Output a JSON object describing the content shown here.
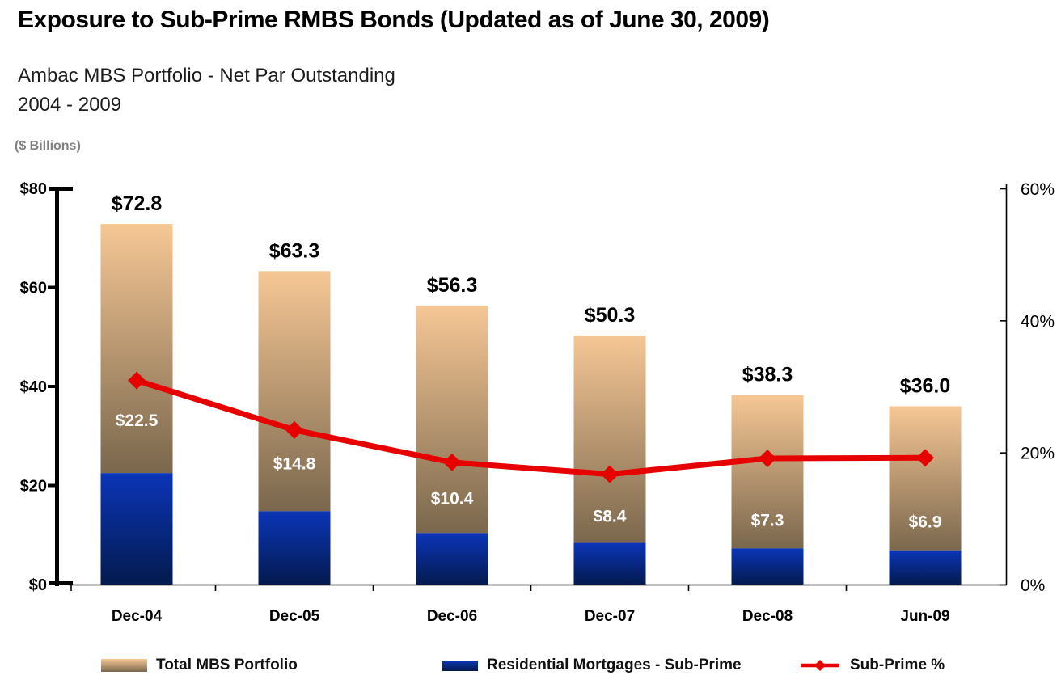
{
  "header": {
    "title": "Exposure to Sub-Prime RMBS Bonds (Updated as of June 30, 2009)",
    "subtitle_line1": "Ambac MBS Portfolio - Net Par Outstanding",
    "subtitle_line2": "2004 - 2009",
    "units_note": "($ Billions)"
  },
  "chart_data": {
    "type": "combo: stacked bar + line (secondary axis)",
    "categories": [
      "Dec-04",
      "Dec-05",
      "Dec-06",
      "Dec-07",
      "Dec-08",
      "Jun-09"
    ],
    "series": [
      {
        "name": "Total MBS Portfolio",
        "kind": "bar-total",
        "values": [
          72.8,
          63.3,
          56.3,
          50.3,
          38.3,
          36.0
        ],
        "data_labels": [
          "$72.8",
          "$63.3",
          "$56.3",
          "$50.3",
          "$38.3",
          "$36.0"
        ]
      },
      {
        "name": "Residential Mortgages - Sub-Prime",
        "kind": "bar-stacked-bottom",
        "values": [
          22.5,
          14.8,
          10.4,
          8.4,
          7.3,
          6.9
        ],
        "data_labels": [
          "$22.5",
          "$14.8",
          "$10.4",
          "$8.4",
          "$7.3",
          "$6.9"
        ]
      },
      {
        "name": "Sub-Prime %",
        "kind": "line",
        "axis": "right",
        "values": [
          30.9,
          23.4,
          18.5,
          16.7,
          19.1,
          19.2
        ]
      }
    ],
    "left_axis": {
      "min": 0,
      "max": 80,
      "ticks": [
        "$0",
        "$20",
        "$40",
        "$60",
        "$80"
      ],
      "tick_values": [
        0,
        20,
        40,
        60,
        80
      ]
    },
    "right_axis": {
      "min": 0,
      "max": 60,
      "ticks": [
        "0%",
        "20%",
        "40%",
        "60%"
      ],
      "tick_values": [
        0,
        20,
        40,
        60
      ]
    },
    "legend": {
      "position": "bottom",
      "items": [
        "Total MBS Portfolio",
        "Residential Mortgages - Sub-Prime",
        "Sub-Prime %"
      ]
    },
    "grid": false,
    "colors": {
      "bar_total_top": "#F6C795",
      "bar_total_bottom": "#7A674D",
      "bar_subprime_top": "#0B35B8",
      "bar_subprime_bottom": "#041A4E",
      "line": "#E60000",
      "axis": "#000000",
      "data_label": "#000000",
      "inner_label": "#FFFFFF",
      "units_note": "#7F7F7F"
    }
  }
}
